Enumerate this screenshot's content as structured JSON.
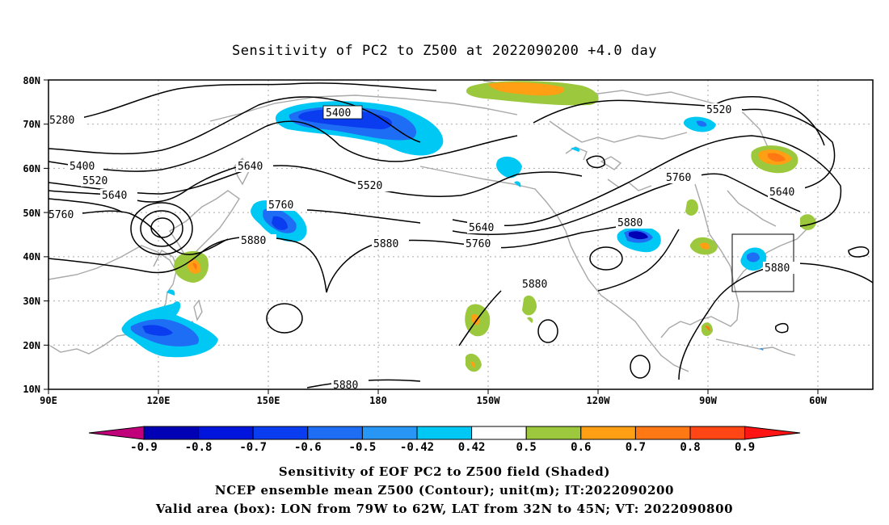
{
  "title": "Sensitivity of PC2 to Z500 at 2022090200 +4.0 day",
  "map": {
    "lat_labels": [
      "80N",
      "70N",
      "60N",
      "50N",
      "40N",
      "30N",
      "20N",
      "10N"
    ],
    "lon_labels": [
      "90E",
      "120E",
      "150E",
      "180",
      "150W",
      "120W",
      "90W",
      "60W"
    ],
    "contour_labels": [
      "5280",
      "5400",
      "5400",
      "5520",
      "5520",
      "5520",
      "5640",
      "5640",
      "5640",
      "5640",
      "5760",
      "5760",
      "5760",
      "5760",
      "5880",
      "5880",
      "5880",
      "5880",
      "5880",
      "5880"
    ]
  },
  "colorbar": {
    "labels": [
      "-0.9",
      "-0.8",
      "-0.7",
      "-0.6",
      "-0.5",
      "-0.42",
      "0.42",
      "0.5",
      "0.6",
      "0.7",
      "0.8",
      "0.9"
    ],
    "colors": [
      "#c0007a",
      "#0000b4",
      "#0014dc",
      "#0a3cf0",
      "#1e6ef5",
      "#2896f5",
      "#00c8f5",
      "#ffffff",
      "#9bc83c",
      "#ffa014",
      "#ff7814",
      "#ff4614",
      "#ff1414",
      "#f0a0c8"
    ]
  },
  "footer": {
    "line1": "Sensitivity of EOF PC2 to Z500 field (Shaded)",
    "line2": "NCEP ensemble mean Z500 (Contour); unit(m); IT:2022090200",
    "line3": "Valid area (box): LON from 79W to 62W, LAT from 32N to 45N; VT: 2022090800"
  }
}
